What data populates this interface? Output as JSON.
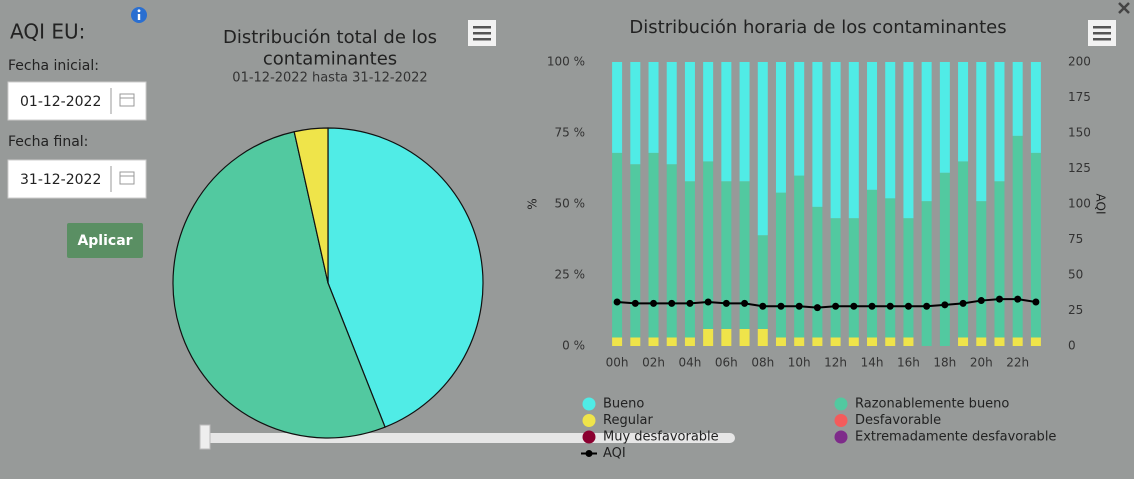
{
  "sidebar": {
    "title": "AQI EU:",
    "start_label": "Fecha inicial:",
    "start_date": "01-12-2022",
    "end_label": "Fecha final:",
    "end_date": "31-12-2022",
    "button": "Aplicar"
  },
  "chart_data": [
    {
      "type": "pie",
      "title": "Distribución total de los contaminantes",
      "subtitle": "01-12-2022 hasta 31-12-2022",
      "values": [
        44,
        52.5,
        3.5
      ],
      "colors": [
        "#50ece6",
        "#52c9a0",
        "#efe44a"
      ]
    },
    {
      "type": "stacked_bar",
      "title": "Distribución horaria de los contaminantes",
      "ylabel": "%",
      "y2label": "AQI",
      "categories": [
        "00h",
        null,
        "02h",
        null,
        "04h",
        null,
        "06h",
        null,
        "08h",
        null,
        "10h",
        null,
        "12h",
        null,
        "14h",
        null,
        "16h",
        null,
        "18h",
        null,
        "20h",
        null,
        "22h",
        null
      ],
      "ylim": [
        0,
        100
      ],
      "yticks": [
        {
          "value": 0,
          "label": "0 %"
        },
        {
          "value": 25,
          "label": "25 %"
        },
        {
          "value": 50,
          "label": "50 %"
        },
        {
          "value": 75,
          "label": "75 %"
        },
        {
          "value": 100,
          "label": "100 %"
        }
      ],
      "y2lim": [
        0,
        200
      ],
      "y2ticks": [
        0,
        25,
        50,
        75,
        100,
        125,
        150,
        175,
        200
      ],
      "series": [
        {
          "name": "Bueno",
          "color": "#50ece6",
          "values": [
            32,
            36,
            32,
            36,
            42,
            35,
            42,
            42,
            61,
            46,
            40,
            51,
            55,
            55,
            45,
            48,
            55,
            49,
            39,
            35,
            49,
            42,
            26,
            32
          ]
        },
        {
          "name": "Razonablemente bueno",
          "color": "#52c9a0",
          "values": [
            65,
            61,
            65,
            61,
            55,
            59,
            52,
            52,
            33,
            51,
            57,
            46,
            42,
            42,
            52,
            49,
            42,
            51,
            61,
            62,
            48,
            55,
            71,
            65
          ]
        },
        {
          "name": "Regular",
          "color": "#efe44a",
          "values": [
            3,
            3,
            3,
            3,
            3,
            6,
            6,
            6,
            6,
            3,
            3,
            3,
            3,
            3,
            3,
            3,
            3,
            0,
            0,
            3,
            3,
            3,
            3,
            3
          ]
        },
        {
          "name": "Desfavorable",
          "color": "#f45b5b",
          "values": [
            0,
            0,
            0,
            0,
            0,
            0,
            0,
            0,
            0,
            0,
            0,
            0,
            0,
            0,
            0,
            0,
            0,
            0,
            0,
            0,
            0,
            0,
            0,
            0
          ]
        },
        {
          "name": "Muy desfavorable",
          "color": "#8b0030",
          "values": [
            0,
            0,
            0,
            0,
            0,
            0,
            0,
            0,
            0,
            0,
            0,
            0,
            0,
            0,
            0,
            0,
            0,
            0,
            0,
            0,
            0,
            0,
            0,
            0
          ]
        },
        {
          "name": "Extremadamente desfavorable",
          "color": "#7e2b8a",
          "values": [
            0,
            0,
            0,
            0,
            0,
            0,
            0,
            0,
            0,
            0,
            0,
            0,
            0,
            0,
            0,
            0,
            0,
            0,
            0,
            0,
            0,
            0,
            0,
            0
          ]
        },
        {
          "name": "AQI",
          "color": "#000000",
          "axis": "y2",
          "values": [
            31,
            30,
            30,
            30,
            30,
            31,
            30,
            30,
            28,
            28,
            28,
            27,
            28,
            28,
            28,
            28,
            28,
            28,
            29,
            30,
            32,
            33,
            33,
            31
          ]
        }
      ]
    }
  ]
}
